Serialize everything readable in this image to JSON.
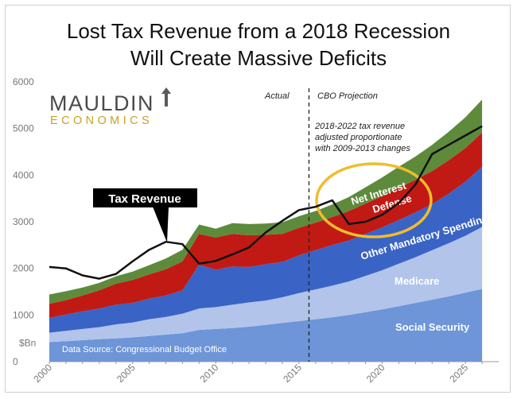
{
  "title": [
    "Lost Tax Revenue from a 2018 Recession",
    "Will Create Massive Deficits"
  ],
  "logo": {
    "top": "MAULDIN",
    "bottom": "ECONOMICS"
  },
  "source_note": "Data Source: Congressional Budget Office",
  "colors": {
    "social_security": "#6d95d8",
    "medicare": "#b2c4ea",
    "other_mandatory": "#3a63c6",
    "defense": "#c11a14",
    "net_interest": "#5e8a3c",
    "tax_revenue": "#111111",
    "circle": "#f0bd2b"
  },
  "chart_data": {
    "type": "area",
    "title": "Lost Tax Revenue from a 2018 Recession Will Create Massive Deficits",
    "x": [
      2000,
      2001,
      2002,
      2003,
      2004,
      2005,
      2006,
      2007,
      2008,
      2009,
      2010,
      2011,
      2012,
      2013,
      2014,
      2015,
      2016,
      2017,
      2018,
      2019,
      2020,
      2021,
      2022,
      2023,
      2024,
      2025,
      2026
    ],
    "xlim": [
      2000,
      2027
    ],
    "ylim": [
      0,
      6000
    ],
    "yticks": [
      0,
      1000,
      2000,
      3000,
      4000,
      5000,
      6000
    ],
    "ytick_labels": [
      "0",
      "1000",
      "2000",
      "3000",
      "4000",
      "5000",
      "6000"
    ],
    "xticks": [
      2000,
      2005,
      2010,
      2015,
      2020,
      2025
    ],
    "ylabel": "$Bn",
    "stack_order": "bottom-to-top",
    "series": [
      {
        "name": "Social Security",
        "color_key": "social_security",
        "values": [
          420,
          440,
          460,
          480,
          500,
          520,
          550,
          580,
          610,
          680,
          700,
          720,
          750,
          790,
          830,
          870,
          910,
          950,
          1000,
          1060,
          1120,
          1190,
          1260,
          1330,
          1400,
          1480,
          1560
        ]
      },
      {
        "name": "Medicare",
        "color_key": "medicare",
        "values": [
          200,
          220,
          240,
          260,
          300,
          320,
          360,
          380,
          420,
          460,
          470,
          500,
          520,
          520,
          550,
          600,
          640,
          680,
          720,
          780,
          840,
          910,
          980,
          1060,
          1140,
          1220,
          1330
        ]
      },
      {
        "name": "Other Mandatory Spending",
        "color_key": "other_mandatory",
        "values": [
          320,
          350,
          380,
          400,
          420,
          420,
          440,
          460,
          500,
          940,
          800,
          820,
          760,
          780,
          760,
          810,
          840,
          870,
          880,
          900,
          920,
          940,
          960,
          990,
          1060,
          1160,
          1290
        ]
      },
      {
        "name": "Defense",
        "color_key": "defense",
        "values": [
          300,
          310,
          340,
          390,
          450,
          490,
          520,
          560,
          620,
          660,
          690,
          700,
          680,
          630,
          600,
          590,
          590,
          600,
          630,
          650,
          670,
          690,
          700,
          710,
          720,
          720,
          730
        ]
      },
      {
        "name": "Net Interest",
        "color_key": "net_interest",
        "values": [
          200,
          190,
          170,
          160,
          160,
          180,
          200,
          230,
          250,
          200,
          190,
          230,
          240,
          240,
          250,
          250,
          250,
          270,
          300,
          350,
          400,
          450,
          500,
          560,
          610,
          660,
          710
        ]
      }
    ],
    "line": {
      "name": "Tax Revenue",
      "color_key": "tax_revenue",
      "values": [
        2030,
        2000,
        1850,
        1780,
        1880,
        2150,
        2400,
        2570,
        2520,
        2100,
        2160,
        2300,
        2450,
        2770,
        3020,
        3250,
        3320,
        3460,
        2950,
        3000,
        3150,
        3400,
        3800,
        4450,
        4650,
        4850,
        5050
      ]
    },
    "divider_x": 2015.6,
    "annotations": {
      "actual": "Actual",
      "projection": "CBO Projection",
      "note": [
        "2018-2022 tax revenue",
        "adjusted proportionate",
        "with 2009-2013 changes"
      ],
      "callout": "Tax Revenue"
    }
  }
}
